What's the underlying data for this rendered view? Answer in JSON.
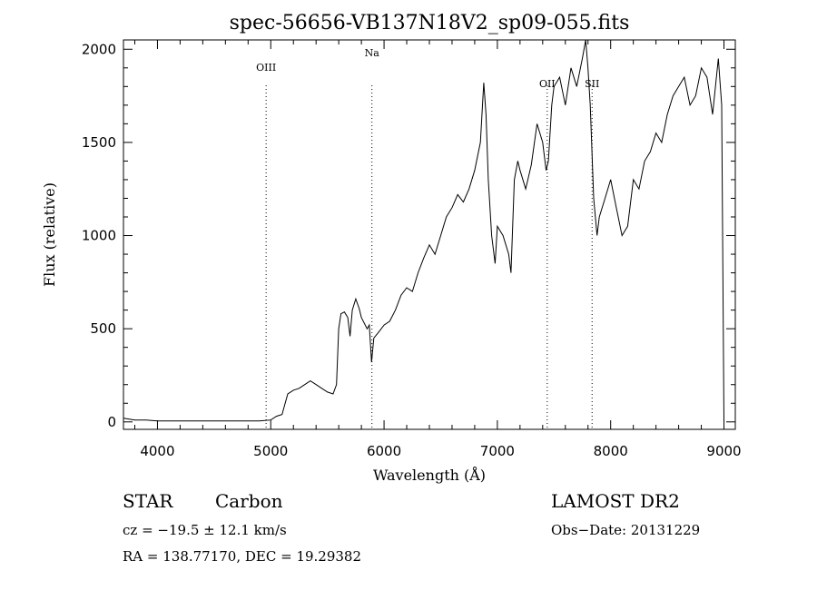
{
  "chart_data": {
    "type": "line",
    "title": "spec-56656-VB137N18V2_sp09-055.fits",
    "xlabel": "Wavelength (Å)",
    "ylabel": "Flux (relative)",
    "xlim": [
      3700,
      9100
    ],
    "ylim": [
      -40,
      2050
    ],
    "x_ticks": [
      4000,
      5000,
      6000,
      7000,
      8000,
      9000
    ],
    "y_ticks": [
      0,
      500,
      1000,
      1500,
      2000
    ],
    "grid": false,
    "series": [
      {
        "x": [
          3700,
          3800,
          3900,
          4000,
          4100,
          4200,
          4300,
          4400,
          4500,
          4600,
          4700,
          4800,
          4900,
          5000,
          5050,
          5100,
          5150,
          5200,
          5250,
          5300,
          5350,
          5400,
          5450,
          5500,
          5550,
          5580,
          5600,
          5620,
          5650,
          5680,
          5700,
          5720,
          5750,
          5780,
          5800,
          5850,
          5870,
          5890,
          5910,
          5950,
          6000,
          6050,
          6100,
          6150,
          6200,
          6250,
          6300,
          6350,
          6400,
          6450,
          6500,
          6550,
          6600,
          6650,
          6700,
          6750,
          6800,
          6850,
          6880,
          6900,
          6920,
          6950,
          6980,
          7000,
          7050,
          7100,
          7120,
          7150,
          7180,
          7200,
          7250,
          7300,
          7350,
          7400,
          7430,
          7450,
          7480,
          7500,
          7550,
          7600,
          7650,
          7700,
          7750,
          7780,
          7800,
          7820,
          7850,
          7880,
          7900,
          7950,
          8000,
          8050,
          8100,
          8150,
          8200,
          8250,
          8300,
          8350,
          8400,
          8450,
          8500,
          8550,
          8600,
          8650,
          8700,
          8750,
          8800,
          8850,
          8900,
          8950,
          8980,
          9000
        ],
        "y": [
          20,
          10,
          10,
          5,
          5,
          5,
          5,
          5,
          5,
          5,
          5,
          5,
          5,
          10,
          30,
          40,
          150,
          170,
          180,
          200,
          220,
          200,
          180,
          160,
          150,
          200,
          500,
          580,
          590,
          560,
          460,
          600,
          660,
          610,
          560,
          500,
          520,
          320,
          450,
          480,
          520,
          540,
          600,
          680,
          720,
          700,
          800,
          880,
          950,
          900,
          1000,
          1100,
          1150,
          1220,
          1180,
          1250,
          1350,
          1500,
          1820,
          1650,
          1300,
          1000,
          850,
          1050,
          1000,
          900,
          800,
          1300,
          1400,
          1350,
          1250,
          1380,
          1600,
          1500,
          1350,
          1400,
          1700,
          1800,
          1850,
          1700,
          1900,
          1800,
          1950,
          2050,
          1900,
          1700,
          1200,
          1000,
          1100,
          1200,
          1300,
          1150,
          1000,
          1050,
          1300,
          1250,
          1400,
          1450,
          1550,
          1500,
          1650,
          1750,
          1800,
          1850,
          1700,
          1750,
          1900,
          1850,
          1650,
          1950,
          1700,
          0
        ]
      }
    ],
    "annotations": [
      {
        "label": "OIII",
        "x": 4959
      },
      {
        "label": "Na",
        "x": 5893
      },
      {
        "label": "OII",
        "x": 7440
      },
      {
        "label": "SII",
        "x": 7836
      }
    ]
  },
  "info": {
    "object_class": "STAR",
    "subclass": "Carbon",
    "redshift": "cz = −19.5 ± 12.1 km/s",
    "coords": "RA = 138.77170, DEC =  19.29382",
    "survey": "LAMOST DR2",
    "obs_date": "Obs−Date: 20131229"
  }
}
